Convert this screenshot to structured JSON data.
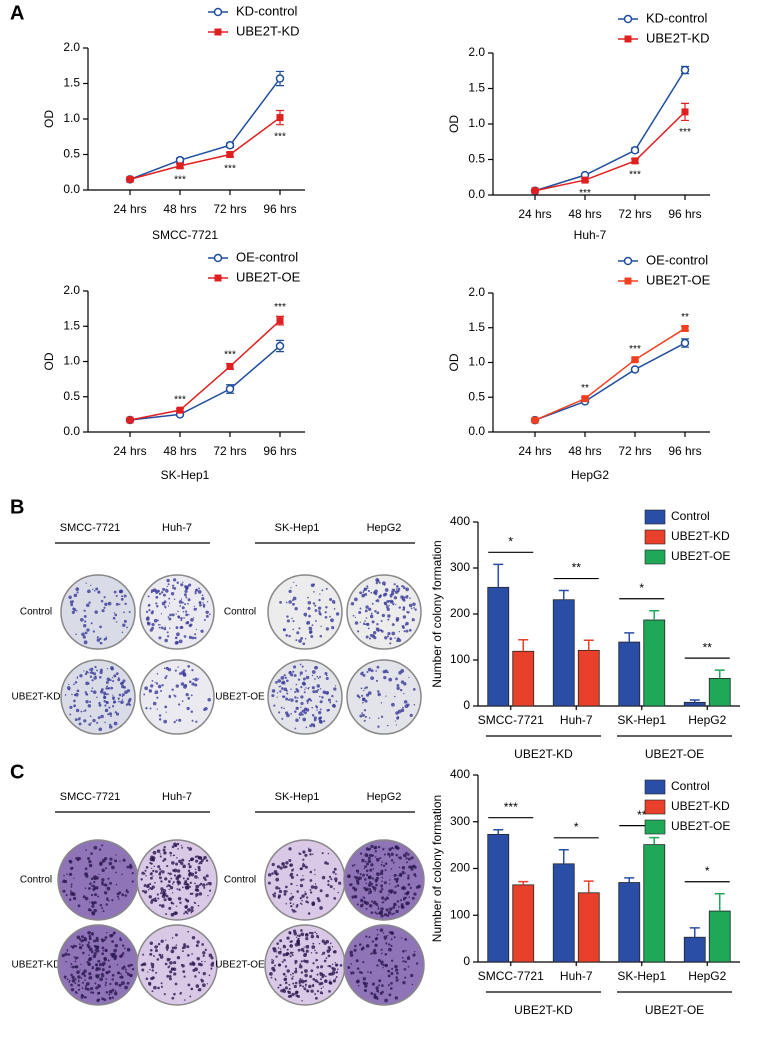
{
  "panel_labels": [
    "A",
    "B",
    "C"
  ],
  "plates": [
    {
      "left_header": [
        "SMCC-7721",
        "Huh-7"
      ],
      "right_header": [
        "SK-Hep1",
        "HepG2"
      ],
      "left_rows": [
        "Control",
        "UBE2T-KD"
      ],
      "right_rows": [
        "Control",
        "UBE2T-OE"
      ]
    },
    {
      "left_header": [
        "SMCC-7721",
        "Huh-7"
      ],
      "right_header": [
        "SK-Hep1",
        "HepG2"
      ],
      "left_rows": [
        "Control",
        "UBE2T-KD"
      ],
      "right_rows": [
        "Control",
        "UBE2T-OE"
      ]
    }
  ],
  "chart_data": [
    {
      "type": "line",
      "subtitle": "SMCC-7721",
      "ylabel": "OD",
      "categories": [
        "24 hrs",
        "48 hrs",
        "72 hrs",
        "96 hrs"
      ],
      "ylim": [
        0,
        2
      ],
      "yticks": [
        {
          "value": 0,
          "label": "0.0"
        },
        0.5,
        {
          "value": 1,
          "label": "1.0"
        },
        1.5,
        {
          "value": 2,
          "label": "2.0"
        }
      ],
      "annotations": [
        null,
        "***",
        "***",
        "***"
      ],
      "annotation_position": "below",
      "series": [
        {
          "name": "KD-control",
          "color": "#1f4e9c",
          "marker": "circle-open",
          "values": [
            0.15,
            0.42,
            0.63,
            1.57
          ],
          "errors": [
            0.02,
            0.03,
            0.03,
            0.1
          ]
        },
        {
          "name": "UBE2T-KD",
          "color": "#e02020",
          "marker": "square",
          "values": [
            0.15,
            0.34,
            0.5,
            1.02
          ],
          "errors": [
            0.02,
            0.03,
            0.03,
            0.1
          ]
        }
      ]
    },
    {
      "type": "line",
      "subtitle": "Huh-7",
      "ylabel": "OD",
      "categories": [
        "24 hrs",
        "48 hrs",
        "72 hrs",
        "96 hrs"
      ],
      "ylim": [
        0,
        2
      ],
      "yticks": [
        {
          "value": 0,
          "label": "0.0"
        },
        0.5,
        {
          "value": 1,
          "label": "1.0"
        },
        1.5,
        {
          "value": 2,
          "label": "2.0"
        }
      ],
      "annotations": [
        null,
        "***",
        "***",
        "***"
      ],
      "annotation_position": "below",
      "series": [
        {
          "name": "KD-control",
          "color": "#1f4e9c",
          "marker": "circle-open",
          "values": [
            0.06,
            0.28,
            0.63,
            1.76
          ],
          "errors": [
            0.01,
            0.02,
            0.03,
            0.05
          ]
        },
        {
          "name": "UBE2T-KD",
          "color": "#e02020",
          "marker": "square",
          "values": [
            0.06,
            0.21,
            0.48,
            1.17
          ],
          "errors": [
            0.01,
            0.02,
            0.03,
            0.12
          ]
        }
      ]
    },
    {
      "type": "line",
      "subtitle": "SK-Hep1",
      "ylabel": "OD",
      "categories": [
        "24 hrs",
        "48 hrs",
        "72 hrs",
        "96 hrs"
      ],
      "ylim": [
        0,
        2
      ],
      "yticks": [
        {
          "value": 0,
          "label": "0.0"
        },
        0.5,
        {
          "value": 1,
          "label": "1.0"
        },
        1.5,
        {
          "value": 2,
          "label": "2.0"
        }
      ],
      "annotations": [
        null,
        "***",
        "***",
        "***"
      ],
      "annotation_position": "above",
      "series": [
        {
          "name": "OE-control",
          "color": "#1f4e9c",
          "marker": "circle-open",
          "values": [
            0.17,
            0.25,
            0.61,
            1.22
          ],
          "errors": [
            0.02,
            0.02,
            0.06,
            0.08
          ]
        },
        {
          "name": "UBE2T-OE",
          "color": "#e02020",
          "marker": "square",
          "values": [
            0.17,
            0.31,
            0.93,
            1.58
          ],
          "errors": [
            0.02,
            0.02,
            0.04,
            0.06
          ]
        }
      ]
    },
    {
      "type": "line",
      "subtitle": "HepG2",
      "ylabel": "OD",
      "categories": [
        "24 hrs",
        "48 hrs",
        "72 hrs",
        "96 hrs"
      ],
      "ylim": [
        0,
        2
      ],
      "yticks": [
        {
          "value": 0,
          "label": "0.0"
        },
        0.5,
        {
          "value": 1,
          "label": "1.0"
        },
        1.5,
        {
          "value": 2,
          "label": "2.0"
        }
      ],
      "annotations": [
        null,
        "**",
        "***",
        "**"
      ],
      "annotation_position": "above",
      "series": [
        {
          "name": "OE-control",
          "color": "#1f4e9c",
          "marker": "circle-open",
          "values": [
            0.17,
            0.44,
            0.9,
            1.28
          ],
          "errors": [
            0.01,
            0.02,
            0.02,
            0.06
          ]
        },
        {
          "name": "UBE2T-OE",
          "color": "#f04020",
          "marker": "square",
          "values": [
            0.17,
            0.48,
            1.04,
            1.49
          ],
          "errors": [
            0.01,
            0.02,
            0.02,
            0.03
          ]
        }
      ]
    },
    {
      "type": "bar",
      "ylabel": "Number of colony formation",
      "categories": [
        "SMCC-7721",
        "Huh-7",
        "SK-Hep1",
        "HepG2"
      ],
      "group_labels": [
        "UBE2T-KD",
        "UBE2T-OE"
      ],
      "significance": [
        "*",
        "**",
        "*",
        "**"
      ],
      "ylim": [
        0,
        400
      ],
      "yticks": [
        0,
        100,
        200,
        300,
        400
      ],
      "series": [
        {
          "name": "Control",
          "color": "#2a4ea6",
          "values": [
            258,
            231,
            139,
            8
          ],
          "errors": [
            50,
            20,
            20,
            5
          ]
        },
        {
          "name": "UBE2T-KD",
          "color": "#e8402a",
          "values": [
            119,
            121,
            null,
            null
          ],
          "errors": [
            25,
            22,
            null,
            null
          ]
        },
        {
          "name": "UBE2T-OE",
          "color": "#1fa858",
          "values": [
            null,
            null,
            187,
            60
          ],
          "errors": [
            null,
            null,
            20,
            18
          ]
        }
      ]
    },
    {
      "type": "bar",
      "ylabel": "Number of colony formation",
      "categories": [
        "SMCC-7721",
        "Huh-7",
        "SK-Hep1",
        "HepG2"
      ],
      "group_labels": [
        "UBE2T-KD",
        "UBE2T-OE"
      ],
      "significance": [
        "***",
        "*",
        "**",
        "*"
      ],
      "ylim": [
        0,
        400
      ],
      "yticks": [
        0,
        100,
        200,
        300,
        400
      ],
      "series": [
        {
          "name": "Control",
          "color": "#2a4ea6",
          "values": [
            273,
            210,
            170,
            53
          ],
          "errors": [
            10,
            30,
            10,
            20
          ]
        },
        {
          "name": "UBE2T-KD",
          "color": "#e8402a",
          "values": [
            165,
            148,
            null,
            null
          ],
          "errors": [
            7,
            25,
            null,
            null
          ]
        },
        {
          "name": "UBE2T-OE",
          "color": "#1fa858",
          "values": [
            null,
            null,
            251,
            109
          ],
          "errors": [
            null,
            null,
            15,
            37
          ]
        }
      ]
    }
  ]
}
